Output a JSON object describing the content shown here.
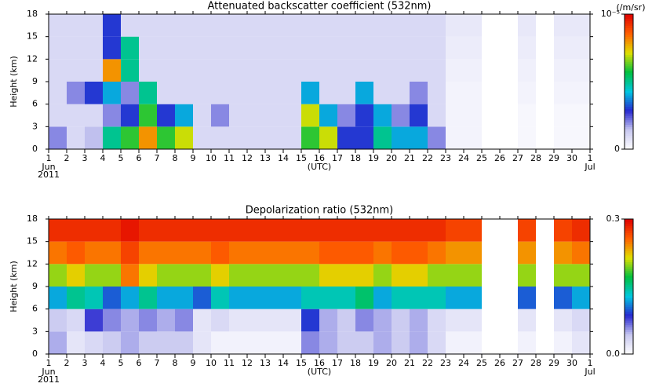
{
  "chart_data": [
    {
      "type": "heatmap",
      "title": "Attenuated backscatter coefficient (532nm)",
      "ylabel": "Height (km)",
      "xlabel": "(UTC)",
      "xmonths": [
        {
          "value": 1,
          "label": "Jun"
        },
        {
          "value": 31,
          "label": "Jul"
        }
      ],
      "xyear": {
        "value": 1,
        "label": "2011"
      },
      "x": [
        1,
        2,
        3,
        4,
        5,
        6,
        7,
        8,
        9,
        10,
        11,
        12,
        13,
        14,
        15,
        16,
        17,
        18,
        19,
        20,
        21,
        22,
        23,
        24,
        25,
        26,
        27,
        28,
        29,
        30,
        31
      ],
      "y": [
        0,
        3,
        6,
        9,
        12,
        15,
        18
      ],
      "xlim": [
        1,
        31
      ],
      "ylim": [
        0,
        18
      ],
      "xticks": [
        1,
        2,
        3,
        4,
        5,
        6,
        7,
        8,
        9,
        10,
        11,
        12,
        13,
        14,
        15,
        16,
        17,
        18,
        19,
        20,
        21,
        22,
        23,
        24,
        25,
        26,
        27,
        28,
        29,
        30,
        {
          "value": 31,
          "label": "1"
        }
      ],
      "yticks": [
        0,
        3,
        6,
        9,
        12,
        15,
        18
      ],
      "zlim": [
        0,
        1e-05
      ],
      "zticks": [
        0,
        {
          "value": 1e-05,
          "label": "10⁻⁵"
        }
      ],
      "zlabel": "(/m/sr)",
      "colormap": [
        "#ffffff",
        "#c8c8f0",
        "#2828d0",
        "#00c8e0",
        "#00c040",
        "#e0e000",
        "#ff6000",
        "#e00000"
      ],
      "z": [
        [
          2e-06,
          1e-06,
          1.5e-06,
          5e-06,
          6e-06,
          8e-06,
          6e-06,
          7e-06,
          1e-06,
          1e-06,
          1e-06,
          1e-06,
          1e-06,
          1e-06,
          6e-06,
          7e-06,
          3e-06,
          3e-06,
          5e-06,
          4e-06,
          4e-06,
          2e-06,
          3e-07,
          3e-07,
          null,
          null,
          2e-07,
          null,
          2e-07,
          2e-07
        ],
        [
          1e-06,
          1e-06,
          1e-06,
          2e-06,
          3e-06,
          6e-06,
          3e-06,
          4e-06,
          1e-06,
          2e-06,
          1e-06,
          1e-06,
          1e-06,
          1e-06,
          7e-06,
          4e-06,
          2e-06,
          3e-06,
          4e-06,
          2e-06,
          3e-06,
          1e-06,
          3e-07,
          3e-07,
          null,
          null,
          2e-07,
          null,
          2e-07,
          2e-07
        ],
        [
          1e-06,
          2e-06,
          3e-06,
          4e-06,
          2e-06,
          5e-06,
          1e-06,
          1e-06,
          1e-06,
          1e-06,
          1e-06,
          1e-06,
          1e-06,
          1e-06,
          4e-06,
          1e-06,
          1e-06,
          4e-06,
          1e-06,
          1e-06,
          2e-06,
          1e-06,
          3e-07,
          3e-07,
          null,
          null,
          3e-07,
          null,
          3e-07,
          3e-07
        ],
        [
          1e-06,
          1e-06,
          1e-06,
          8e-06,
          5e-06,
          1e-06,
          1e-06,
          1e-06,
          1e-06,
          1e-06,
          1e-06,
          1e-06,
          1e-06,
          1e-06,
          1e-06,
          1e-06,
          1e-06,
          1e-06,
          1e-06,
          1e-06,
          1e-06,
          1e-06,
          4e-07,
          4e-07,
          null,
          null,
          4e-07,
          null,
          4e-07,
          4e-07
        ],
        [
          1e-06,
          1e-06,
          1e-06,
          3e-06,
          5e-06,
          1e-06,
          1e-06,
          1e-06,
          1e-06,
          1e-06,
          1e-06,
          1e-06,
          1e-06,
          1e-06,
          1e-06,
          1e-06,
          1e-06,
          1e-06,
          1e-06,
          1e-06,
          1e-06,
          1e-06,
          5e-07,
          5e-07,
          null,
          null,
          5e-07,
          null,
          5e-07,
          5e-07
        ],
        [
          1e-06,
          1e-06,
          1e-06,
          3e-06,
          1e-06,
          1e-06,
          1e-06,
          1e-06,
          1e-06,
          1e-06,
          1e-06,
          1e-06,
          1e-06,
          1e-06,
          1e-06,
          1e-06,
          1e-06,
          1e-06,
          1e-06,
          1e-06,
          1e-06,
          1e-06,
          6e-07,
          6e-07,
          null,
          null,
          6e-07,
          null,
          6e-07,
          6e-07
        ]
      ]
    },
    {
      "type": "heatmap",
      "title": "Depolarization ratio (532nm)",
      "ylabel": "Height (km)",
      "xlabel": "(UTC)",
      "xmonths": [
        {
          "value": 1,
          "label": "Jun"
        },
        {
          "value": 31,
          "label": "Jul"
        }
      ],
      "xyear": {
        "value": 1,
        "label": "2011"
      },
      "x": [
        1,
        2,
        3,
        4,
        5,
        6,
        7,
        8,
        9,
        10,
        11,
        12,
        13,
        14,
        15,
        16,
        17,
        18,
        19,
        20,
        21,
        22,
        23,
        24,
        25,
        26,
        27,
        28,
        29,
        30,
        31
      ],
      "y": [
        0,
        3,
        6,
        9,
        12,
        15,
        18
      ],
      "xlim": [
        1,
        31
      ],
      "ylim": [
        0,
        18
      ],
      "xticks": [
        1,
        2,
        3,
        4,
        5,
        6,
        7,
        8,
        9,
        10,
        11,
        12,
        13,
        14,
        15,
        16,
        17,
        18,
        19,
        20,
        21,
        22,
        23,
        24,
        25,
        26,
        27,
        28,
        29,
        30,
        {
          "value": 31,
          "label": "1"
        }
      ],
      "yticks": [
        0,
        3,
        6,
        9,
        12,
        15,
        18
      ],
      "zlim": [
        0,
        0.3
      ],
      "zticks": [
        {
          "value": 0,
          "label": "0.0"
        },
        0.3
      ],
      "colormap": [
        "#ffffff",
        "#c8c8f0",
        "#2828d0",
        "#00c8e0",
        "#00c040",
        "#e0e000",
        "#ff6000",
        "#e00000"
      ],
      "z": [
        [
          0.05,
          0.02,
          0.03,
          0.04,
          0.05,
          0.04,
          0.04,
          0.04,
          0.02,
          0.01,
          0.01,
          0.01,
          0.01,
          0.01,
          0.06,
          0.05,
          0.04,
          0.04,
          0.05,
          0.04,
          0.05,
          0.03,
          0.01,
          0.01,
          null,
          null,
          0.01,
          null,
          0.01,
          0.02
        ],
        [
          0.04,
          0.03,
          0.08,
          0.06,
          0.05,
          0.06,
          0.05,
          0.06,
          0.02,
          0.03,
          0.02,
          0.02,
          0.02,
          0.02,
          0.09,
          0.05,
          0.04,
          0.06,
          0.05,
          0.04,
          0.05,
          0.03,
          0.02,
          0.02,
          null,
          null,
          0.02,
          null,
          0.02,
          0.03
        ],
        [
          0.12,
          0.15,
          0.14,
          0.1,
          0.12,
          0.15,
          0.12,
          0.12,
          0.1,
          0.14,
          0.12,
          0.12,
          0.12,
          0.12,
          0.14,
          0.14,
          0.14,
          0.16,
          0.12,
          0.14,
          0.14,
          0.14,
          0.12,
          0.12,
          null,
          null,
          0.1,
          null,
          0.1,
          0.12
        ],
        [
          0.2,
          0.22,
          0.2,
          0.2,
          0.25,
          0.22,
          0.2,
          0.2,
          0.2,
          0.22,
          0.2,
          0.2,
          0.2,
          0.2,
          0.2,
          0.22,
          0.22,
          0.22,
          0.2,
          0.22,
          0.22,
          0.2,
          0.2,
          0.2,
          null,
          null,
          0.2,
          null,
          0.2,
          0.2
        ],
        [
          0.25,
          0.26,
          0.25,
          0.25,
          0.27,
          0.25,
          0.25,
          0.25,
          0.25,
          0.26,
          0.25,
          0.25,
          0.25,
          0.25,
          0.25,
          0.26,
          0.26,
          0.26,
          0.25,
          0.26,
          0.26,
          0.25,
          0.24,
          0.24,
          null,
          null,
          0.24,
          null,
          0.24,
          0.25
        ],
        [
          0.28,
          0.28,
          0.28,
          0.28,
          0.29,
          0.28,
          0.28,
          0.28,
          0.28,
          0.28,
          0.28,
          0.28,
          0.28,
          0.28,
          0.28,
          0.28,
          0.28,
          0.28,
          0.28,
          0.28,
          0.28,
          0.28,
          0.27,
          0.27,
          null,
          null,
          0.27,
          null,
          0.27,
          0.28
        ]
      ]
    }
  ]
}
